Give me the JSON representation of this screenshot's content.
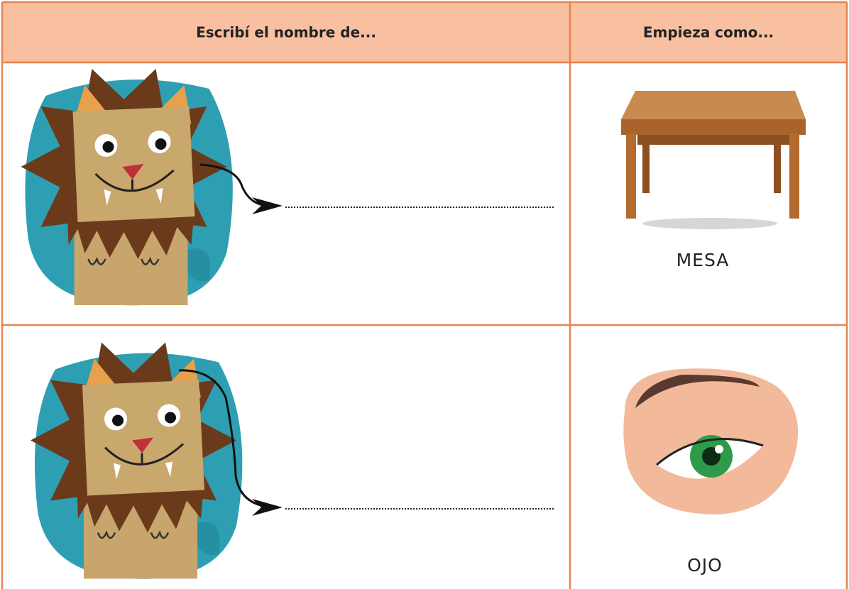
{
  "table": {
    "headers": [
      "Escribí el nombre de...",
      "Empieza como..."
    ],
    "rows": [
      {
        "word": "MESA"
      },
      {
        "word": "OJO"
      }
    ]
  }
}
